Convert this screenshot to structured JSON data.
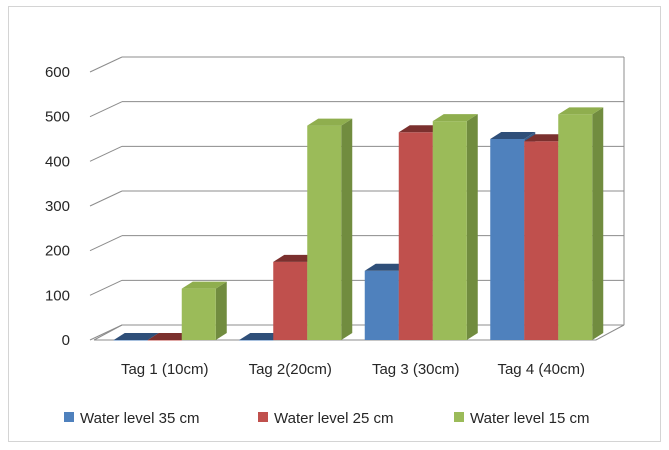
{
  "chart_data": {
    "type": "bar",
    "three_d": true,
    "categories": [
      "Tag 1 (10cm)",
      "Tag 2(20cm)",
      "Tag 3 (30cm)",
      "Tag 4 (40cm)"
    ],
    "series": [
      {
        "name": "Water level 35 cm",
        "color": "#4f81bd",
        "side": "#385d8a",
        "top": "#2f4f79",
        "values": [
          0,
          0,
          155,
          450
        ]
      },
      {
        "name": "Water level 25 cm",
        "color": "#c0504d",
        "side": "#8c3836",
        "top": "#7b302e",
        "values": [
          0,
          175,
          465,
          445
        ]
      },
      {
        "name": "Water level 15 cm",
        "color": "#9bbb59",
        "side": "#718c3f",
        "top": "#8fae4e",
        "values": [
          115,
          480,
          490,
          505
        ]
      }
    ],
    "ylim": [
      0,
      600
    ],
    "yticks": [
      "0",
      "100",
      "200",
      "300",
      "400",
      "500",
      "600"
    ],
    "grid": true,
    "legend_position": "bottom"
  }
}
